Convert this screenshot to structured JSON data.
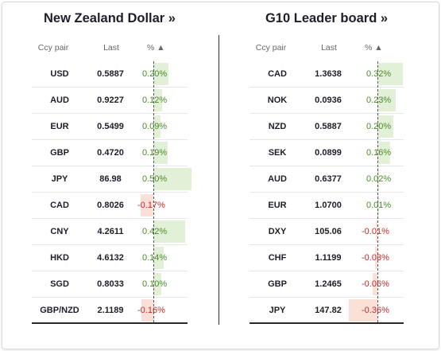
{
  "left": {
    "title": "New Zealand Dollar »",
    "headers": {
      "pair": "Ccy pair",
      "last": "Last",
      "pct": "% ▲"
    },
    "rows": [
      {
        "pair": "USD",
        "last": "0.5887",
        "pct": "0.20%",
        "value": 0.2
      },
      {
        "pair": "AUD",
        "last": "0.9227",
        "pct": "0.12%",
        "value": 0.12
      },
      {
        "pair": "EUR",
        "last": "0.5499",
        "pct": "0.09%",
        "value": 0.09
      },
      {
        "pair": "GBP",
        "last": "0.4720",
        "pct": "0.19%",
        "value": 0.19
      },
      {
        "pair": "JPY",
        "last": "86.98",
        "pct": "0.50%",
        "value": 0.5
      },
      {
        "pair": "CAD",
        "last": "0.8026",
        "pct": "-0.17%",
        "value": -0.17
      },
      {
        "pair": "CNY",
        "last": "4.2611",
        "pct": "0.42%",
        "value": 0.42
      },
      {
        "pair": "HKD",
        "last": "4.6132",
        "pct": "0.14%",
        "value": 0.14
      },
      {
        "pair": "SGD",
        "last": "0.8033",
        "pct": "0.10%",
        "value": 0.1
      },
      {
        "pair": "GBP/NZD",
        "last": "2.1189",
        "pct": "-0.16%",
        "value": -0.16
      }
    ]
  },
  "right": {
    "title": "G10 Leader board »",
    "headers": {
      "pair": "Ccy pair",
      "last": "Last",
      "pct": "% ▲"
    },
    "rows": [
      {
        "pair": "CAD",
        "last": "1.3638",
        "pct": "0.32%",
        "value": 0.32
      },
      {
        "pair": "NOK",
        "last": "0.0936",
        "pct": "0.23%",
        "value": 0.23
      },
      {
        "pair": "NZD",
        "last": "0.5887",
        "pct": "0.20%",
        "value": 0.2
      },
      {
        "pair": "SEK",
        "last": "0.0899",
        "pct": "0.16%",
        "value": 0.16
      },
      {
        "pair": "AUD",
        "last": "0.6377",
        "pct": "0.02%",
        "value": 0.02
      },
      {
        "pair": "EUR",
        "last": "1.0700",
        "pct": "0.01%",
        "value": 0.01
      },
      {
        "pair": "DXY",
        "last": "105.06",
        "pct": "-0.01%",
        "value": -0.01
      },
      {
        "pair": "CHF",
        "last": "1.1199",
        "pct": "-0.03%",
        "value": -0.03
      },
      {
        "pair": "GBP",
        "last": "1.2465",
        "pct": "-0.06%",
        "value": -0.06
      },
      {
        "pair": "JPY",
        "last": "147.82",
        "pct": "-0.36%",
        "value": -0.36
      }
    ]
  },
  "colors": {
    "positive": "#4a8a2a",
    "negative": "#c62a2a",
    "positive_bar": "#e2f0d8",
    "negative_bar": "#fbe0d8"
  }
}
